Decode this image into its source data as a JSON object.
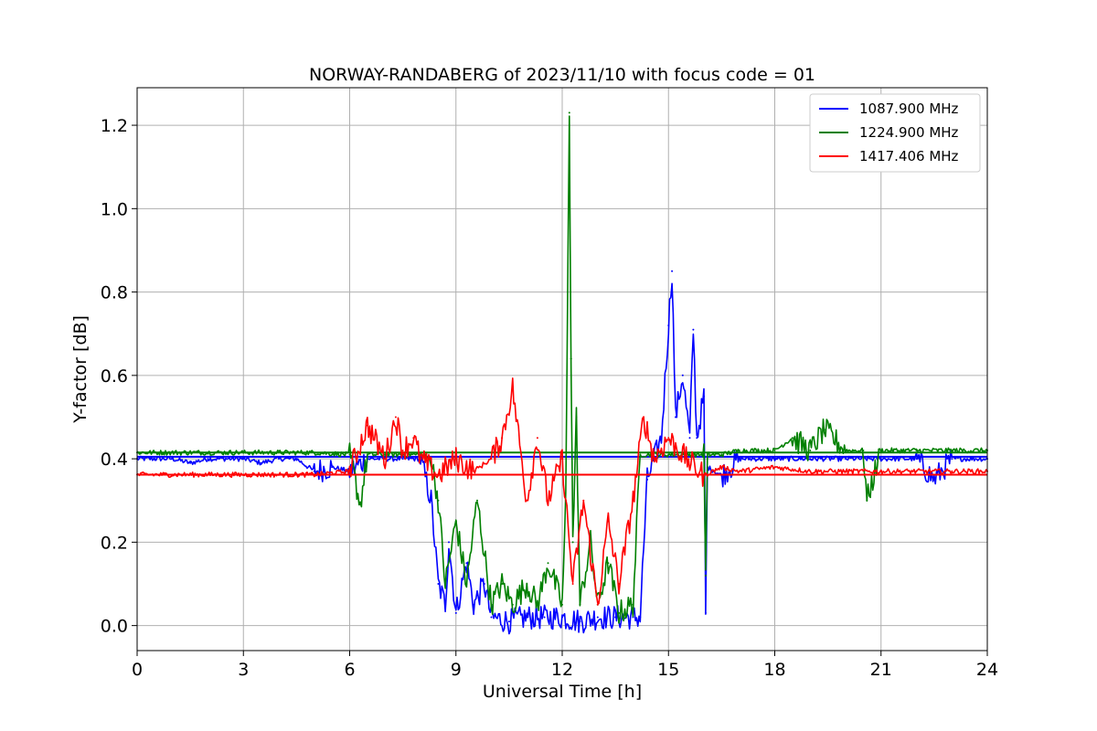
{
  "chart_data": {
    "type": "line",
    "title": "NORWAY-RANDABERG of 2023/11/10 with focus code = 01",
    "xlabel": "Universal Time [h]",
    "ylabel": "Y-factor [dB]",
    "xlim": [
      0,
      24
    ],
    "ylim": [
      -0.06,
      1.29
    ],
    "xticks": [
      0,
      3,
      6,
      9,
      12,
      15,
      18,
      21,
      24
    ],
    "xtick_labels": [
      "0",
      "3",
      "6",
      "9",
      "12",
      "15",
      "18",
      "21",
      "24"
    ],
    "yticks": [
      0.0,
      0.2,
      0.4,
      0.6,
      0.8,
      1.0,
      1.2
    ],
    "ytick_labels": [
      "0.0",
      "0.2",
      "0.4",
      "0.6",
      "0.8",
      "1.0",
      "1.2"
    ],
    "grid": true,
    "legend_position": "top-right",
    "series": [
      {
        "name": "1087.900 MHz",
        "color": "#0000ff",
        "baseline": 0.405,
        "x": [
          0,
          0.5,
          1,
          1.5,
          2,
          2.5,
          3,
          3.5,
          4,
          4.5,
          5,
          5.5,
          6,
          6.5,
          7,
          7.5,
          8,
          8.3,
          8.5,
          8.7,
          8.8,
          9,
          9.3,
          9.5,
          9.8,
          10,
          10.5,
          11,
          11.5,
          12,
          12.5,
          13,
          13.5,
          14,
          14.2,
          14.4,
          14.6,
          14.8,
          15,
          15.1,
          15.2,
          15.4,
          15.6,
          15.7,
          15.8,
          16,
          16.05,
          16.1,
          16.5,
          17,
          18,
          19,
          20,
          21,
          22,
          22.5,
          23,
          24
        ],
        "y": [
          0.4,
          0.4,
          0.4,
          0.39,
          0.4,
          0.4,
          0.4,
          0.39,
          0.4,
          0.4,
          0.37,
          0.38,
          0.37,
          0.4,
          0.4,
          0.4,
          0.4,
          0.3,
          0.1,
          0.05,
          0.2,
          0.03,
          0.15,
          0.05,
          0.1,
          0.02,
          0.01,
          0.02,
          0.02,
          0.02,
          0.01,
          0.02,
          0.02,
          0.02,
          0.02,
          0.35,
          0.4,
          0.45,
          0.72,
          0.85,
          0.5,
          0.6,
          0.45,
          0.71,
          0.45,
          0.55,
          0.03,
          0.38,
          0.36,
          0.4,
          0.4,
          0.4,
          0.4,
          0.4,
          0.4,
          0.35,
          0.4,
          0.4
        ]
      },
      {
        "name": "1224.900 MHz",
        "color": "#008000",
        "baseline": 0.415,
        "x": [
          0,
          1,
          2,
          3,
          4,
          5,
          6,
          6.3,
          6.5,
          7,
          7.5,
          8,
          8.3,
          8.5,
          8.7,
          9,
          9.3,
          9.6,
          10,
          10.3,
          10.6,
          11,
          11.3,
          11.6,
          12,
          12.1,
          12.2,
          12.25,
          12.3,
          12.4,
          12.5,
          12.8,
          13,
          13.3,
          13.6,
          14,
          14.2,
          14.5,
          15,
          15.5,
          16,
          16.05,
          16.1,
          16.5,
          17,
          18,
          18.5,
          19,
          19.4,
          20,
          20.5,
          20.6,
          21,
          22,
          23,
          24
        ],
        "y": [
          0.415,
          0.415,
          0.415,
          0.415,
          0.415,
          0.415,
          0.41,
          0.29,
          0.41,
          0.41,
          0.41,
          0.41,
          0.4,
          0.3,
          0.1,
          0.25,
          0.1,
          0.3,
          0.05,
          0.1,
          0.05,
          0.1,
          0.05,
          0.15,
          0.05,
          0.3,
          1.23,
          0.64,
          0.2,
          0.5,
          0.05,
          0.2,
          0.05,
          0.15,
          0.03,
          0.05,
          0.41,
          0.41,
          0.41,
          0.41,
          0.41,
          0.12,
          0.41,
          0.41,
          0.42,
          0.42,
          0.45,
          0.42,
          0.47,
          0.42,
          0.42,
          0.3,
          0.42,
          0.42,
          0.42,
          0.42
        ]
      },
      {
        "name": "1417.406 MHz",
        "color": "#ff0000",
        "baseline": 0.362,
        "x": [
          0,
          1,
          2,
          3,
          4,
          5,
          6,
          6.5,
          7,
          7.3,
          7.5,
          7.8,
          8,
          8.5,
          9,
          9.5,
          10,
          10.3,
          10.6,
          11,
          11.3,
          11.6,
          12,
          12.3,
          12.6,
          13,
          13.3,
          13.6,
          14,
          14.3,
          14.6,
          15,
          15.5,
          16,
          16.5,
          17,
          18,
          19,
          20,
          21,
          22,
          23,
          24
        ],
        "y": [
          0.362,
          0.362,
          0.362,
          0.362,
          0.362,
          0.362,
          0.37,
          0.48,
          0.4,
          0.5,
          0.42,
          0.45,
          0.4,
          0.36,
          0.4,
          0.37,
          0.4,
          0.45,
          0.57,
          0.3,
          0.45,
          0.3,
          0.4,
          0.1,
          0.3,
          0.05,
          0.25,
          0.1,
          0.3,
          0.5,
          0.4,
          0.45,
          0.4,
          0.36,
          0.38,
          0.37,
          0.38,
          0.37,
          0.37,
          0.37,
          0.37,
          0.37,
          0.37
        ]
      }
    ]
  }
}
